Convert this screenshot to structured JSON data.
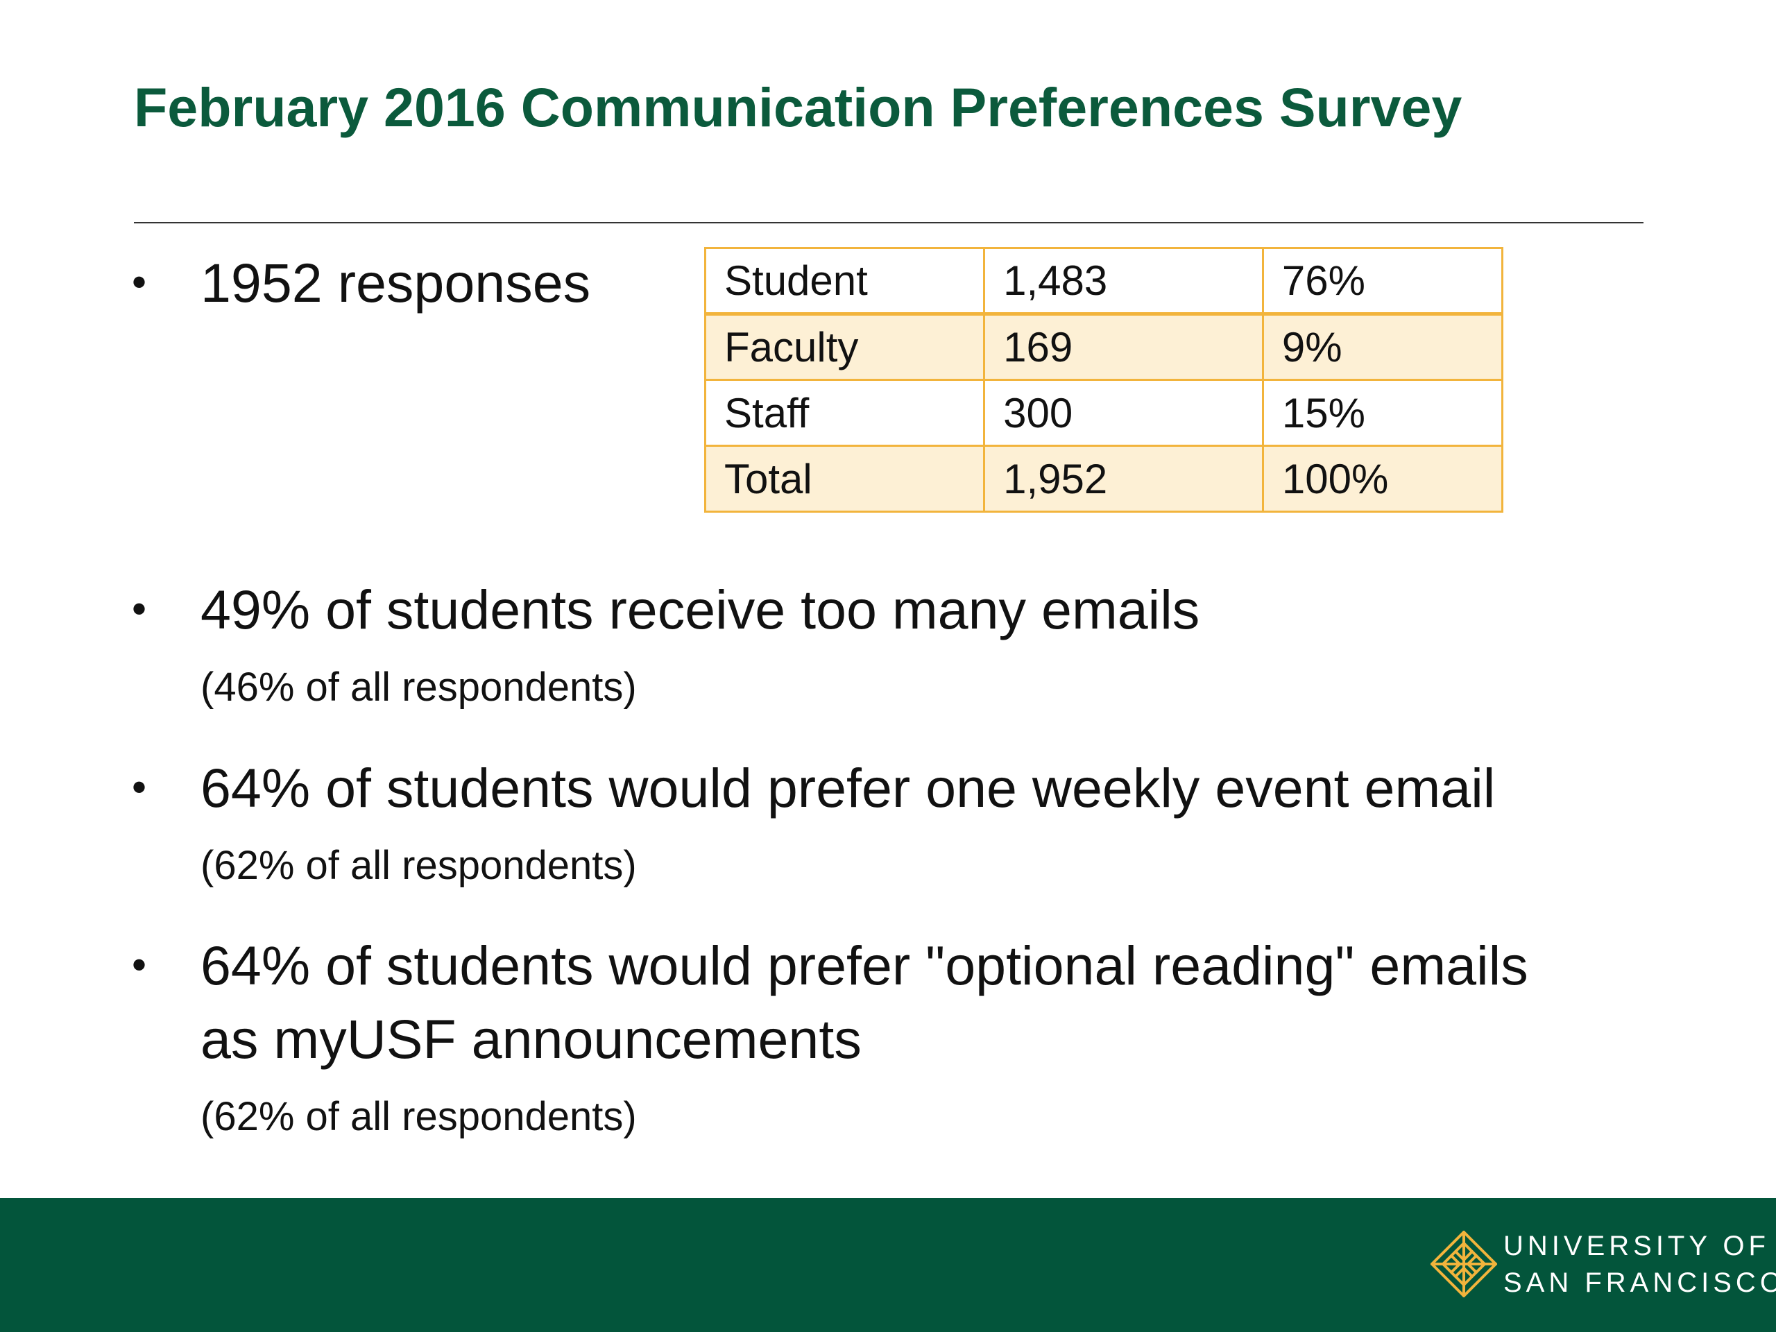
{
  "slide": {
    "title": "February 2016 Communication Preferences Survey"
  },
  "bullets": [
    {
      "text": "1952 responses"
    },
    {
      "text": "49% of students receive too many emails",
      "sub": "(46% of all respondents)"
    },
    {
      "text": "64% of students would prefer one weekly event email",
      "sub": "(62% of all respondents)"
    },
    {
      "text_line1": "64% of students would prefer \"optional reading\" emails",
      "text_line2": "as myUSF announcements",
      "sub": "(62% of all respondents)"
    }
  ],
  "response_table": {
    "rows": [
      [
        "Student",
        "1,483",
        "76%"
      ],
      [
        "Faculty",
        "169",
        "9%"
      ],
      [
        "Staff",
        "300",
        "15%"
      ],
      [
        "Total",
        "1,952",
        "100%"
      ]
    ]
  },
  "colors": {
    "title_green": "#0b5a3c",
    "footer_green": "#03553b",
    "table_border_gold": "#f2b43c",
    "table_shade": "#fdf0d5",
    "logo_gold": "#f2b43c"
  },
  "footer": {
    "logo_icon": "usf-cross-logo-icon",
    "logo_line1": "UNIVERSITY OF",
    "logo_line2": "SAN FRANCISCO"
  }
}
